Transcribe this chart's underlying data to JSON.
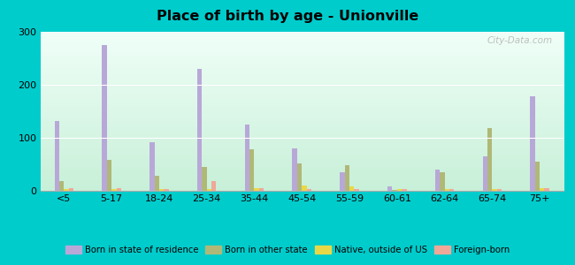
{
  "title": "Place of birth by age - Unionville",
  "categories": [
    "<5",
    "5-17",
    "18-24",
    "25-34",
    "35-44",
    "45-54",
    "55-59",
    "60-61",
    "62-64",
    "65-74",
    "75+"
  ],
  "series": {
    "Born in state of residence": [
      132,
      275,
      92,
      230,
      125,
      80,
      35,
      8,
      40,
      65,
      178
    ],
    "Born in other state": [
      18,
      58,
      28,
      45,
      78,
      52,
      48,
      2,
      35,
      118,
      55
    ],
    "Native, outside of US": [
      3,
      3,
      3,
      3,
      5,
      10,
      8,
      3,
      3,
      3,
      5
    ],
    "Foreign-born": [
      5,
      5,
      3,
      18,
      5,
      3,
      3,
      3,
      3,
      3,
      5
    ]
  },
  "colors": {
    "Born in state of residence": "#b8a8d8",
    "Born in other state": "#b0b878",
    "Native, outside of US": "#e8d848",
    "Foreign-born": "#f0a898"
  },
  "ylim": [
    0,
    300
  ],
  "yticks": [
    0,
    100,
    200,
    300
  ],
  "bg_top": "#f0fff8",
  "bg_bottom": "#c8f0d8",
  "outer_background": "#00cccc",
  "legend_items": [
    "Born in state of residence",
    "Born in other state",
    "Native, outside of US",
    "Foreign-born"
  ],
  "watermark": "City-Data.com"
}
